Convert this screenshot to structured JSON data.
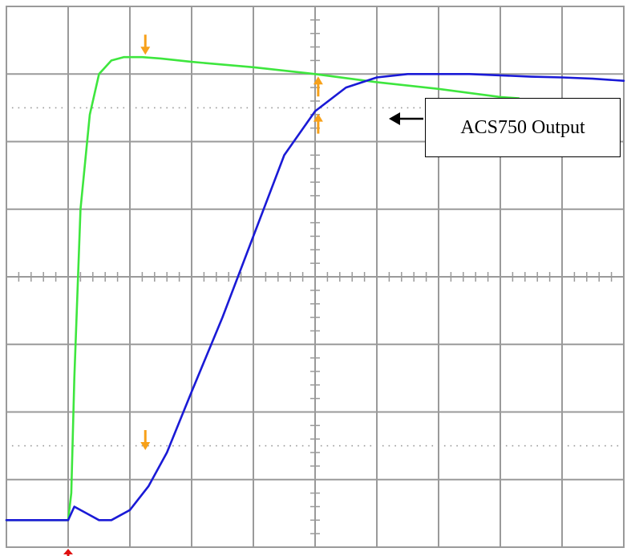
{
  "colors": {
    "grid": "#9a9a9a",
    "green_trace": "#3ee63e",
    "blue_trace": "#1a1ad6",
    "marker": "#f7a11a",
    "trigger": "#e01010"
  },
  "annotation": {
    "label": "ACS750 Output",
    "arrow_icon": "left-arrow-icon"
  },
  "chart_data": {
    "type": "line",
    "title": "",
    "xlabel": "",
    "ylabel": "",
    "grid": true,
    "xlim": [
      0,
      10
    ],
    "ylim": [
      -4,
      4
    ],
    "trigger_x": 1,
    "series": [
      {
        "color": "#3ee63e",
        "x": [
          0,
          1,
          1.05,
          1.1,
          1.2,
          1.35,
          1.5,
          1.7,
          1.9,
          2.2,
          2.5,
          3.0,
          4.0,
          5.0,
          6.0,
          7.0,
          8.0,
          8.3
        ],
        "y": [
          -3.6,
          -3.6,
          -3.2,
          -1.5,
          1.0,
          2.4,
          3.0,
          3.2,
          3.25,
          3.25,
          3.23,
          3.18,
          3.1,
          3.0,
          2.88,
          2.78,
          2.66,
          2.64
        ]
      },
      {
        "color": "#1a1ad6",
        "x": [
          0,
          1,
          1.1,
          1.3,
          1.5,
          1.7,
          2.0,
          2.3,
          2.6,
          3.0,
          3.5,
          4.0,
          4.5,
          5.0,
          5.5,
          6.0,
          6.5,
          7.0,
          7.5,
          8.0,
          8.5,
          9.0,
          9.5,
          10
        ],
        "y": [
          -3.6,
          -3.6,
          -3.4,
          -3.5,
          -3.6,
          -3.6,
          -3.45,
          -3.1,
          -2.6,
          -1.7,
          -0.6,
          0.6,
          1.8,
          2.45,
          2.8,
          2.95,
          3.0,
          3.0,
          3.0,
          2.98,
          2.96,
          2.95,
          2.93,
          2.9
        ]
      }
    ],
    "markers": [
      {
        "x": 2.25,
        "y": 3.25,
        "dir": "down"
      },
      {
        "x": 5.05,
        "y": 3.0,
        "dir": "up"
      },
      {
        "x": 5.05,
        "y": 2.45,
        "dir": "up"
      },
      {
        "x": 2.25,
        "y": -2.6,
        "dir": "down"
      }
    ]
  }
}
